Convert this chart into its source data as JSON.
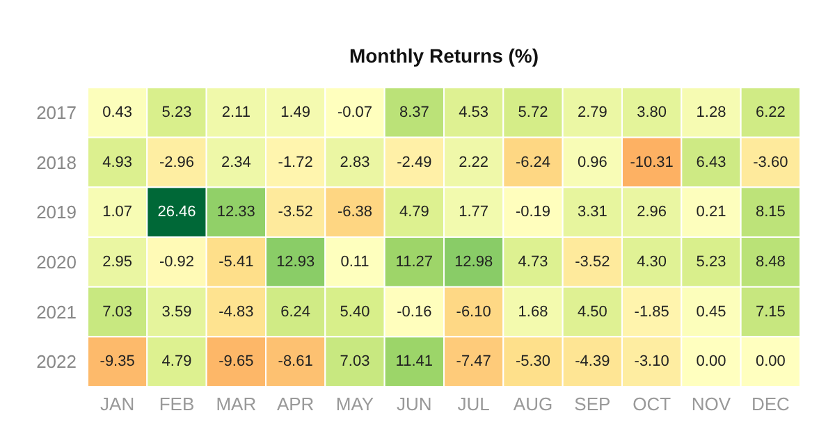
{
  "chart_data": {
    "type": "heatmap",
    "title": "Monthly Returns (%)",
    "categories": [
      "JAN",
      "FEB",
      "MAR",
      "APR",
      "MAY",
      "JUN",
      "JUL",
      "AUG",
      "SEP",
      "OCT",
      "NOV",
      "DEC"
    ],
    "y_categories": [
      "2017",
      "2018",
      "2019",
      "2020",
      "2021",
      "2022"
    ],
    "cells": [
      [
        0.43,
        5.23,
        2.11,
        1.49,
        -0.07,
        8.37,
        4.53,
        5.72,
        2.79,
        3.8,
        1.28,
        6.22
      ],
      [
        4.93,
        -2.96,
        2.34,
        -1.72,
        2.83,
        -2.49,
        2.22,
        -6.24,
        0.96,
        -10.31,
        6.43,
        -3.6
      ],
      [
        1.07,
        26.46,
        12.33,
        -3.52,
        -6.38,
        4.79,
        1.77,
        -0.19,
        3.31,
        2.96,
        0.21,
        8.15
      ],
      [
        2.95,
        -0.92,
        -5.41,
        12.93,
        0.11,
        11.27,
        12.98,
        4.73,
        -3.52,
        4.3,
        5.23,
        8.48
      ],
      [
        7.03,
        3.59,
        -4.83,
        6.24,
        5.4,
        -0.16,
        -6.1,
        1.68,
        4.5,
        -1.85,
        0.45,
        7.15
      ],
      [
        -9.35,
        4.79,
        -9.65,
        -8.61,
        7.03,
        11.41,
        -7.47,
        -5.3,
        -4.39,
        -3.1,
        0.0,
        0.0
      ]
    ],
    "cell_labels": [
      [
        "0.43",
        "5.23",
        "2.11",
        "1.49",
        "-0.07",
        "8.37",
        "4.53",
        "5.72",
        "2.79",
        "3.80",
        "1.28",
        "6.22"
      ],
      [
        "4.93",
        "-2.96",
        "2.34",
        "-1.72",
        "2.83",
        "-2.49",
        "2.22",
        "-6.24",
        "0.96",
        "-10.31",
        "6.43",
        "-3.60"
      ],
      [
        "1.07",
        "26.46",
        "12.33",
        "-3.52",
        "-6.38",
        "4.79",
        "1.77",
        "-0.19",
        "3.31",
        "2.96",
        "0.21",
        "8.15"
      ],
      [
        "2.95",
        "-0.92",
        "-5.41",
        "12.93",
        "0.11",
        "11.27",
        "12.98",
        "4.73",
        "-3.52",
        "4.30",
        "5.23",
        "8.48"
      ],
      [
        "7.03",
        "3.59",
        "-4.83",
        "6.24",
        "5.40",
        "-0.16",
        "-6.10",
        "1.68",
        "4.50",
        "-1.85",
        "0.45",
        "7.15"
      ],
      [
        "-9.35",
        "4.79",
        "-9.65",
        "-8.61",
        "7.03",
        "11.41",
        "-7.47",
        "-5.30",
        "-4.39",
        "-3.10",
        "0.00",
        "0.00"
      ]
    ]
  }
}
